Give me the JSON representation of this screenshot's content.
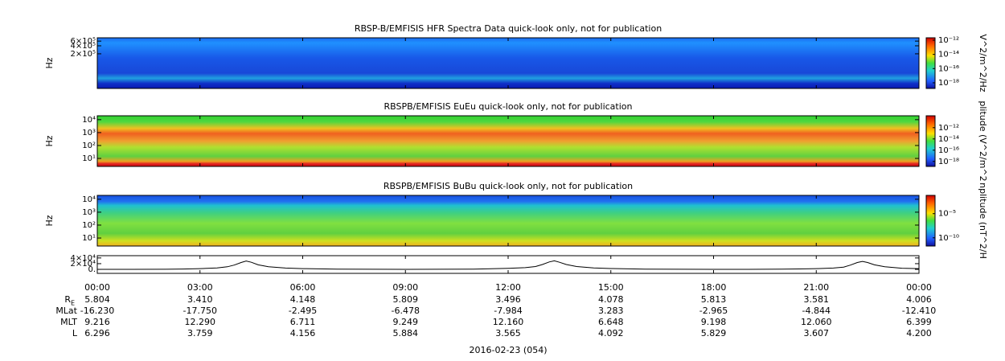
{
  "chart_data": [
    {
      "type": "heatmap",
      "title": "RBSP-B/EMFISIS  HFR Spectra Data quick-look only, not for publication",
      "ylabel": "Hz",
      "ylim": [
        10000,
        800000
      ],
      "log_y": true,
      "yticks": [
        {
          "value": 200000,
          "label": "2×10⁵"
        },
        {
          "value": 400000,
          "label": "4×10⁵"
        },
        {
          "value": 600000,
          "label": "6×10⁵"
        }
      ],
      "colorbar": {
        "label": "V^2/m^2/Hz",
        "lim": [
          1.6e-19,
          2.2e-12
        ],
        "log": true,
        "ticks": [
          {
            "value": 1e-12,
            "label": "10⁻¹²"
          },
          {
            "value": 1e-14,
            "label": "10⁻¹⁴"
          },
          {
            "value": 1e-16,
            "label": "10⁻¹⁶"
          },
          {
            "value": 1e-18,
            "label": "10⁻¹⁸"
          }
        ]
      }
    },
    {
      "type": "heatmap",
      "title": "RBSPB/EMFISIS  EuEu quick-look only, not for publication",
      "ylabel": "Hz",
      "ylim": [
        2.4,
        20000
      ],
      "log_y": true,
      "yticks": [
        {
          "value": 10,
          "label": "10¹"
        },
        {
          "value": 100,
          "label": "10²"
        },
        {
          "value": 1000,
          "label": "10³"
        },
        {
          "value": 10000,
          "label": "10⁴"
        }
      ],
      "colorbar": {
        "label": "plitude (V^2/m^2",
        "lim": [
          1.3e-19,
          1.3e-10
        ],
        "log": true,
        "ticks": [
          {
            "value": 1e-12,
            "label": "10⁻¹²"
          },
          {
            "value": 1e-14,
            "label": "10⁻¹⁴"
          },
          {
            "value": 1e-16,
            "label": "10⁻¹⁶"
          },
          {
            "value": 1e-18,
            "label": "10⁻¹⁸"
          }
        ]
      }
    },
    {
      "type": "heatmap",
      "title": "RBSPB/EMFISIS  BuBu quick-look only, not for publication",
      "ylabel": "Hz",
      "ylim": [
        2.4,
        20000
      ],
      "log_y": true,
      "yticks": [
        {
          "value": 10,
          "label": "10¹"
        },
        {
          "value": 100,
          "label": "10²"
        },
        {
          "value": 1000,
          "label": "10³"
        },
        {
          "value": 10000,
          "label": "10⁴"
        }
      ],
      "colorbar": {
        "label": "nplitude (nT^2/H",
        "lim": [
          2e-12,
          0.06
        ],
        "log": true,
        "ticks": [
          {
            "value": 1e-05,
            "label": "10⁻⁵"
          },
          {
            "value": 1e-10,
            "label": "10⁻¹⁰"
          }
        ]
      }
    },
    {
      "type": "line",
      "ylim": [
        -14000,
        48000
      ],
      "color": "#000000",
      "yticks": [
        {
          "value": 0,
          "label": "0."
        },
        {
          "value": 20000,
          "label": "2×10⁴"
        },
        {
          "value": 40000,
          "label": "4×10⁴"
        }
      ],
      "x": [
        0,
        1,
        2,
        2.5,
        3,
        3.5,
        3.8,
        4.0,
        4.2,
        4.35,
        4.5,
        4.7,
        5.0,
        5.5,
        6,
        7,
        8,
        9,
        10,
        11,
        11.5,
        12,
        12.5,
        12.8,
        13.0,
        13.2,
        13.35,
        13.5,
        13.7,
        14.0,
        14.5,
        15,
        16,
        17,
        18,
        19,
        20,
        20.5,
        21,
        21.5,
        21.8,
        22.0,
        22.2,
        22.35,
        22.5,
        22.7,
        23,
        23.5,
        24
      ],
      "values": [
        0,
        0,
        500,
        1200,
        2500,
        5000,
        9000,
        15000,
        24000,
        29000,
        25000,
        16000,
        9000,
        4500,
        2500,
        1000,
        300,
        100,
        300,
        1000,
        2000,
        3500,
        6000,
        10000,
        17000,
        26000,
        30000,
        25000,
        17000,
        10000,
        5000,
        3000,
        1000,
        300,
        100,
        200,
        800,
        1500,
        2500,
        4500,
        8000,
        15000,
        24000,
        28000,
        24000,
        16000,
        9000,
        4000,
        2500
      ]
    }
  ],
  "time_axis": {
    "xlim": [
      0,
      24
    ],
    "xticks": [
      {
        "value": 0,
        "label": "00:00"
      },
      {
        "value": 3,
        "label": "03:00"
      },
      {
        "value": 6,
        "label": "06:00"
      },
      {
        "value": 9,
        "label": "09:00"
      },
      {
        "value": 12,
        "label": "12:00"
      },
      {
        "value": 15,
        "label": "15:00"
      },
      {
        "value": 18,
        "label": "18:00"
      },
      {
        "value": 21,
        "label": "21:00"
      },
      {
        "value": 24,
        "label": "00:00"
      }
    ],
    "rows": [
      {
        "label": "R",
        "subscript": "E",
        "values": [
          "5.804",
          "3.410",
          "4.148",
          "5.809",
          "3.496",
          "4.078",
          "5.813",
          "3.581",
          "4.006"
        ]
      },
      {
        "label": "MLat",
        "values": [
          "-16.230",
          "-17.750",
          "-2.495",
          "-6.478",
          "-7.984",
          "3.283",
          "-2.965",
          "-4.844",
          "-12.410"
        ]
      },
      {
        "label": "MLT",
        "values": [
          "9.216",
          "12.290",
          "6.711",
          "9.249",
          "12.160",
          "6.648",
          "9.198",
          "12.060",
          "6.399"
        ]
      },
      {
        "label": "L",
        "values": [
          "6.296",
          "3.759",
          "4.156",
          "5.884",
          "3.565",
          "4.092",
          "5.829",
          "3.607",
          "4.200"
        ]
      }
    ],
    "date": "2016-02-23 (054)"
  }
}
